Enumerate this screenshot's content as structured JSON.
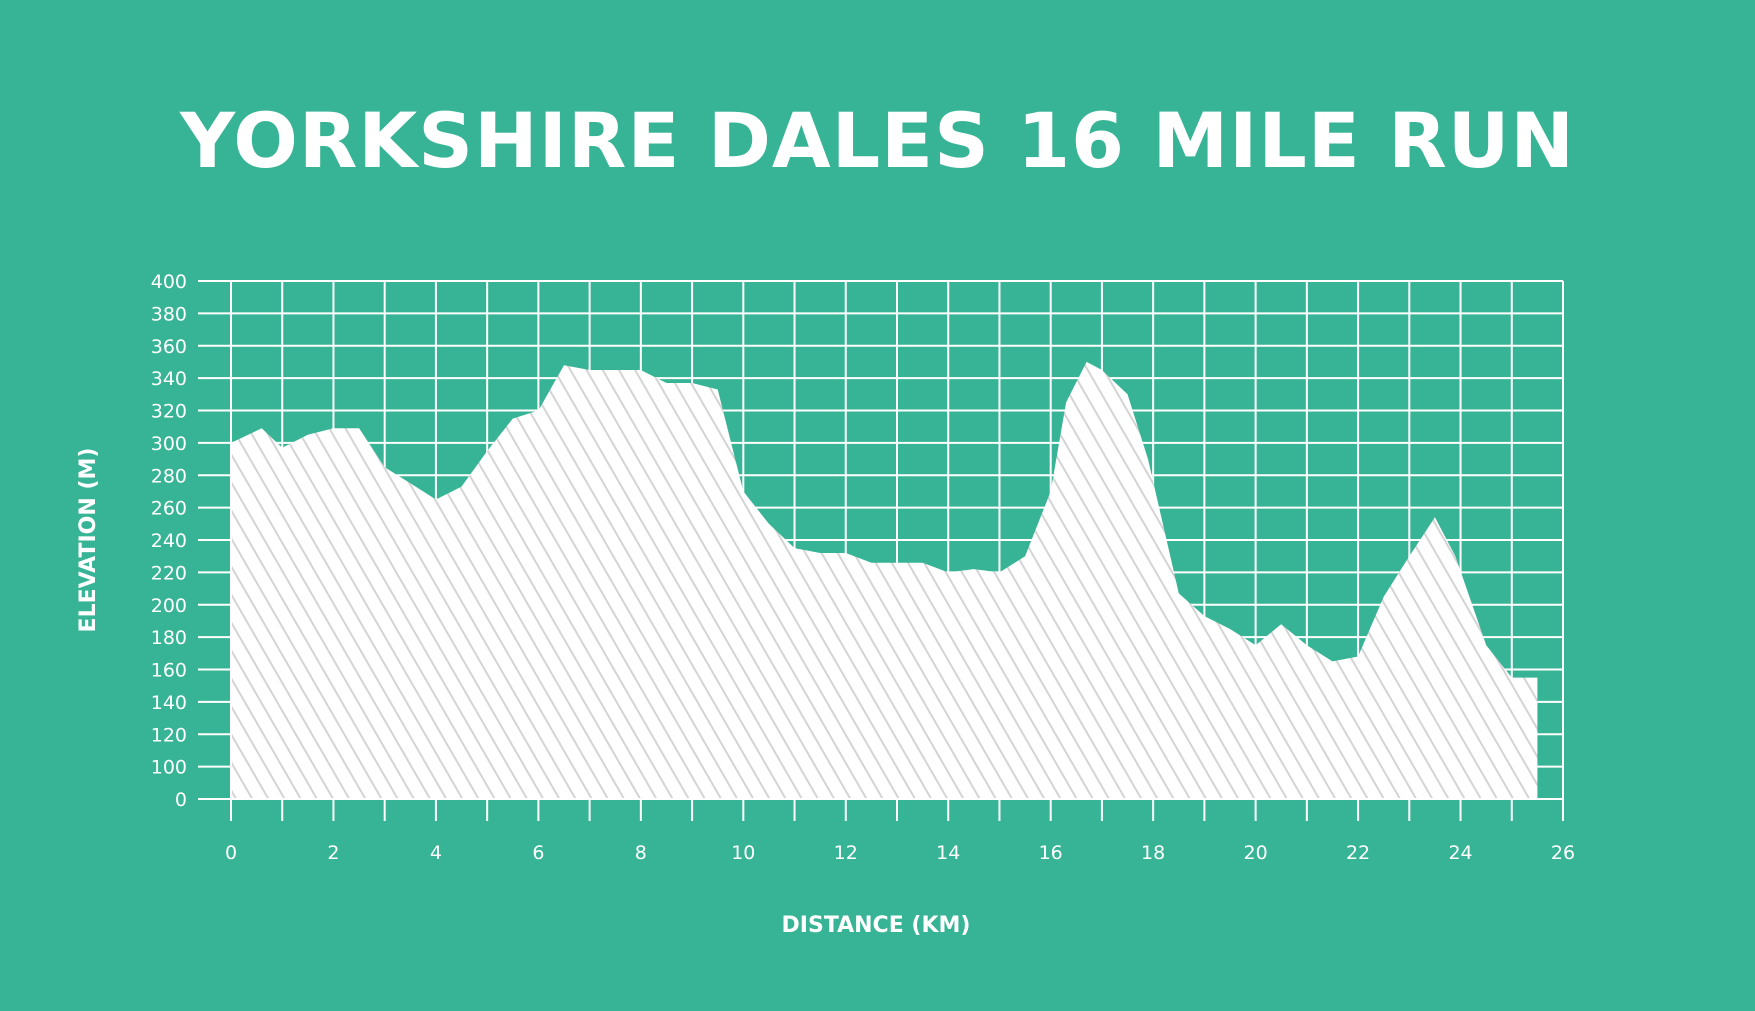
{
  "chart_data": {
    "type": "area",
    "title": "YORKSHIRE DALES 16 MILE RUN",
    "xlabel": "DISTANCE (KM)",
    "ylabel": "ELEVATION (M)",
    "xlim": [
      0,
      26
    ],
    "ylim": [
      0,
      400
    ],
    "x_ticks": [
      0,
      2,
      4,
      6,
      8,
      10,
      12,
      14,
      16,
      18,
      20,
      22,
      24,
      26
    ],
    "y_ticks": [
      0,
      100,
      120,
      140,
      160,
      180,
      200,
      220,
      240,
      260,
      280,
      300,
      320,
      340,
      360,
      380,
      400
    ],
    "grid": true,
    "colors": {
      "background": "#37b495",
      "fill": "#ffffff",
      "hatch": "#d4d4d4",
      "grid": "#ffffff"
    },
    "series": [
      {
        "x": [
          0,
          0.6,
          1,
          1.5,
          2,
          2.5,
          3,
          3.5,
          4,
          4.5,
          5,
          5.5,
          6,
          6.5,
          7,
          7.5,
          8,
          8.5,
          9,
          9.5,
          10,
          10.5,
          11,
          11.5,
          12,
          12.5,
          13,
          13.5,
          14,
          14.5,
          15,
          15.5,
          16,
          16.3,
          16.7,
          17,
          17.5,
          17.9,
          18.5,
          19,
          19.5,
          20,
          20.5,
          21,
          21.5,
          22,
          22.5,
          23,
          23.5,
          23.9,
          24.5,
          25,
          25.5
        ],
        "y": [
          300,
          309,
          297,
          305,
          309,
          309,
          285,
          275,
          265,
          273,
          295,
          315,
          320,
          348,
          345,
          345,
          345,
          337,
          337,
          333,
          270,
          250,
          235,
          232,
          232,
          226,
          226,
          226,
          220,
          222,
          220,
          230,
          270,
          325,
          350,
          345,
          330,
          290,
          207,
          193,
          185,
          175,
          188,
          175,
          165,
          168,
          205,
          230,
          254,
          230,
          175,
          155,
          155
        ]
      }
    ]
  }
}
